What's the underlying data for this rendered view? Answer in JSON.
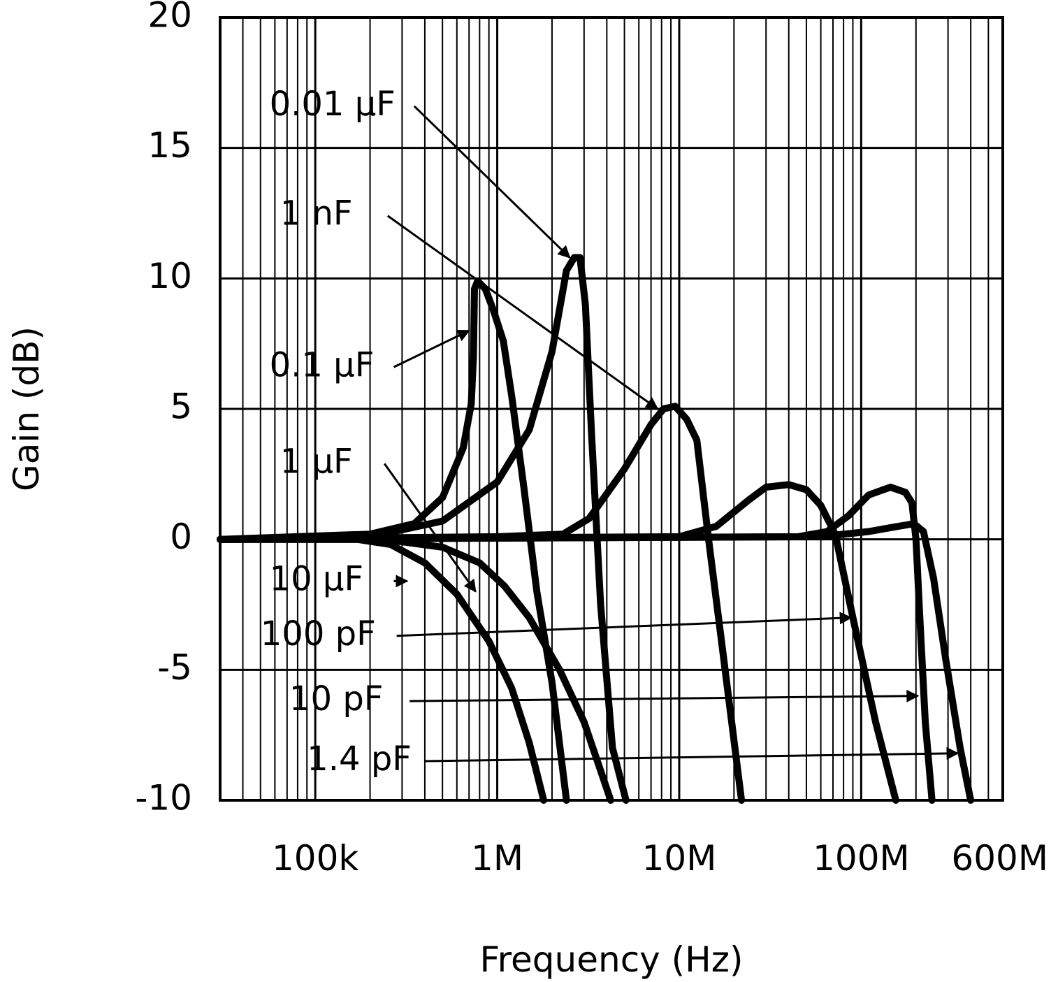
{
  "chart_data": {
    "type": "line",
    "xlabel": "Frequency (Hz)",
    "ylabel": "Gain (dB)",
    "xscale": "log",
    "xlim": [
      30000,
      600000000
    ],
    "ylim": [
      -10,
      20
    ],
    "grid": true,
    "x_ticks": [
      {
        "value": 100000,
        "label": "100k"
      },
      {
        "value": 1000000,
        "label": "1M"
      },
      {
        "value": 10000000,
        "label": "10M"
      },
      {
        "value": 100000000,
        "label": "100M"
      },
      {
        "value": 600000000,
        "label": "600M"
      }
    ],
    "y_ticks": [
      {
        "value": 20,
        "label": "20"
      },
      {
        "value": 15,
        "label": "15"
      },
      {
        "value": 10,
        "label": "10"
      },
      {
        "value": 5,
        "label": "5"
      },
      {
        "value": 0,
        "label": "0"
      },
      {
        "value": -5,
        "label": "-5"
      },
      {
        "value": -10,
        "label": "-10"
      }
    ],
    "series": [
      {
        "name": "0.01 µF",
        "points": [
          [
            30000,
            0
          ],
          [
            200000,
            0.1
          ],
          [
            500000,
            0.7
          ],
          [
            1000000,
            2.2
          ],
          [
            1500000,
            4.2
          ],
          [
            2000000,
            7.2
          ],
          [
            2400000,
            10.3
          ],
          [
            2650000,
            10.8
          ],
          [
            2850000,
            10.8
          ],
          [
            3050000,
            9.0
          ],
          [
            3300000,
            4.0
          ],
          [
            3700000,
            -2.5
          ],
          [
            4300000,
            -8.0
          ],
          [
            5100000,
            -10
          ]
        ]
      },
      {
        "name": "1 nF",
        "points": [
          [
            30000,
            0
          ],
          [
            1000000,
            0.1
          ],
          [
            2300000,
            0.2
          ],
          [
            3200000,
            0.8
          ],
          [
            5000000,
            2.7
          ],
          [
            7000000,
            4.4
          ],
          [
            8200000,
            5.0
          ],
          [
            9500000,
            5.1
          ],
          [
            11000000,
            4.6
          ],
          [
            12500000,
            3.8
          ],
          [
            14500000,
            0
          ],
          [
            17500000,
            -4.5
          ],
          [
            22000000,
            -10
          ]
        ]
      },
      {
        "name": "0.1 µF",
        "points": [
          [
            30000,
            0
          ],
          [
            200000,
            0.2
          ],
          [
            350000,
            0.6
          ],
          [
            500000,
            1.6
          ],
          [
            650000,
            3.5
          ],
          [
            720000,
            5.2
          ],
          [
            740000,
            7.0
          ],
          [
            750000,
            9.6
          ],
          [
            780000,
            9.9
          ],
          [
            860000,
            9.6
          ],
          [
            950000,
            8.8
          ],
          [
            1080000,
            7.6
          ],
          [
            1200000,
            5.5
          ],
          [
            1400000,
            2.0
          ],
          [
            1650000,
            -2.0
          ],
          [
            2000000,
            -5.5
          ],
          [
            2400000,
            -10
          ]
        ]
      },
      {
        "name": "1 µF",
        "points": [
          [
            30000,
            0
          ],
          [
            180000,
            0
          ],
          [
            270000,
            -0.05
          ],
          [
            500000,
            -0.3
          ],
          [
            800000,
            -0.9
          ],
          [
            1100000,
            -1.8
          ],
          [
            1500000,
            -3.0
          ],
          [
            2200000,
            -5.0
          ],
          [
            3000000,
            -7.0
          ],
          [
            4200000,
            -10
          ]
        ]
      },
      {
        "name": "10 µF",
        "points": [
          [
            30000,
            0
          ],
          [
            170000,
            0
          ],
          [
            260000,
            -0.2
          ],
          [
            400000,
            -0.9
          ],
          [
            600000,
            -2.1
          ],
          [
            900000,
            -3.9
          ],
          [
            1200000,
            -5.7
          ],
          [
            1500000,
            -7.8
          ],
          [
            1800000,
            -10
          ]
        ]
      },
      {
        "name": "100 pF",
        "points": [
          [
            30000,
            0
          ],
          [
            10000000,
            0.1
          ],
          [
            16000000,
            0.5
          ],
          [
            24000000,
            1.5
          ],
          [
            30000000,
            2.0
          ],
          [
            40000000,
            2.1
          ],
          [
            50000000,
            1.9
          ],
          [
            60000000,
            1.3
          ],
          [
            72000000,
            0.2
          ],
          [
            90000000,
            -3.0
          ],
          [
            120000000,
            -7.0
          ],
          [
            155000000,
            -10
          ]
        ]
      },
      {
        "name": "10 pF",
        "points": [
          [
            30000,
            0
          ],
          [
            45000000,
            0.1
          ],
          [
            65000000,
            0.3
          ],
          [
            85000000,
            0.9
          ],
          [
            110000000,
            1.7
          ],
          [
            145000000,
            2.0
          ],
          [
            175000000,
            1.8
          ],
          [
            190000000,
            1.4
          ],
          [
            200000000,
            0
          ],
          [
            210000000,
            -3.0
          ],
          [
            225000000,
            -7.0
          ],
          [
            245000000,
            -10
          ]
        ]
      },
      {
        "name": "1.4 pF",
        "points": [
          [
            30000,
            0
          ],
          [
            60000000,
            0.1
          ],
          [
            110000000,
            0.3
          ],
          [
            160000000,
            0.5
          ],
          [
            195000000,
            0.6
          ],
          [
            220000000,
            0.3
          ],
          [
            250000000,
            -1.5
          ],
          [
            290000000,
            -4.5
          ],
          [
            350000000,
            -8.0
          ],
          [
            400000000,
            -10
          ]
        ]
      }
    ],
    "annotations": [
      {
        "label": "0.01 µF",
        "label_at": [
          56000,
          16.6
        ],
        "arrow_from": [
          350000,
          16.6
        ],
        "arrow_to": [
          2500000,
          10.8
        ]
      },
      {
        "label": "1 nF",
        "label_at": [
          64000,
          12.4
        ],
        "arrow_from": [
          250000,
          12.4
        ],
        "arrow_to": [
          7600000,
          5.0
        ]
      },
      {
        "label": "0.1 µF",
        "label_at": [
          56000,
          6.6
        ],
        "arrow_from": [
          270000,
          6.6
        ],
        "arrow_to": [
          700000,
          8.0
        ]
      },
      {
        "label": "1 µF",
        "label_at": [
          64000,
          2.9
        ],
        "arrow_from": [
          240000,
          2.9
        ],
        "arrow_to": [
          760000,
          -2.0
        ]
      },
      {
        "label": "10 µF",
        "label_at": [
          56000,
          -1.6
        ],
        "arrow_from": [
          270000,
          -1.6
        ],
        "arrow_to": [
          320000,
          -1.6
        ]
      },
      {
        "label": "100 pF",
        "label_at": [
          50000,
          -3.7
        ],
        "arrow_from": [
          280000,
          -3.7
        ],
        "arrow_to": [
          88000000,
          -3.0
        ]
      },
      {
        "label": "10 pF",
        "label_at": [
          72000,
          -6.2
        ],
        "arrow_from": [
          330000,
          -6.2
        ],
        "arrow_to": [
          205000000,
          -6.0
        ]
      },
      {
        "label": "1.4 pF",
        "label_at": [
          90000,
          -8.5
        ],
        "arrow_from": [
          400000,
          -8.5
        ],
        "arrow_to": [
          340000000,
          -8.2
        ]
      }
    ]
  }
}
